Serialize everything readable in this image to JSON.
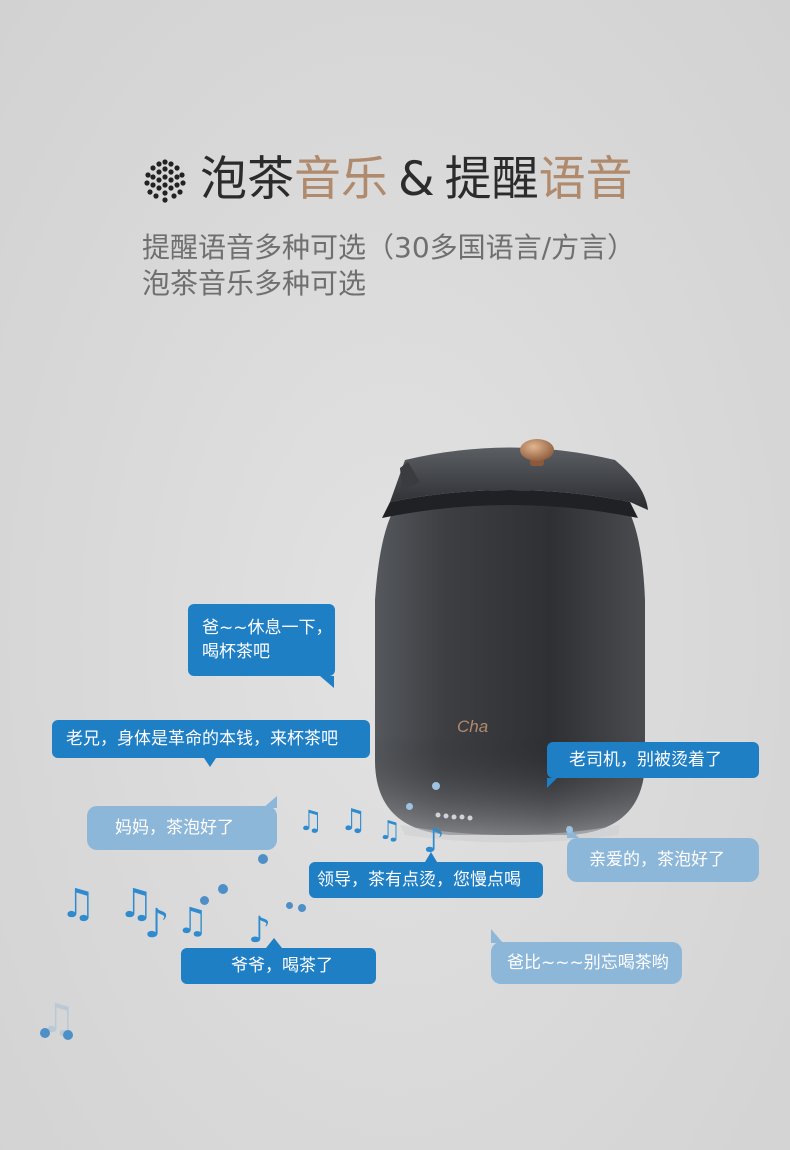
{
  "headline": {
    "part1": "泡茶",
    "part2": "音乐",
    "amp": "&",
    "part3": "提醒",
    "part4": "语音"
  },
  "subtitle": {
    "line1": "提醒语音多种可选（30多国语言/方言）",
    "line2": "泡茶音乐多种可选"
  },
  "product": {
    "brand_logo": "Cha"
  },
  "bubbles": {
    "b1_line1": "爸~~休息一下，",
    "b1_line2": "喝杯茶吧",
    "b2": "老兄，身体是革命的本钱，来杯茶吧",
    "b3": "老司机，别被烫着了",
    "b4": "妈妈，茶泡好了",
    "b5": "亲爱的，茶泡好了",
    "b6": "领导，茶有点烫，您慢点喝",
    "b7": "爷爷，喝茶了",
    "b8": "爸比~~~别忘喝茶哟"
  },
  "icons": {
    "speaker": "speaker-grille-icon",
    "notes": "music-note-icon"
  },
  "colors": {
    "accent": "#b08a6c",
    "bubble_blue": "#1f7fc4",
    "bubble_light": "#8db7d9",
    "kettle_body": "#3a3c40"
  }
}
